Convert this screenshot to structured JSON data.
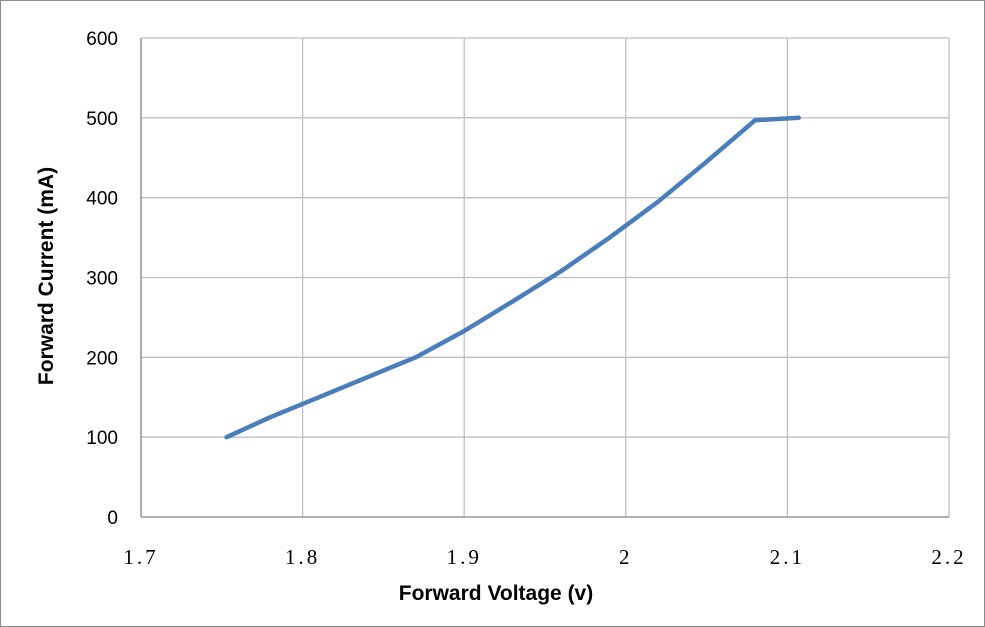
{
  "chart_data": {
    "type": "line",
    "title": "",
    "xlabel": "Forward Voltage (v)",
    "ylabel": "Forward Current  (mA)",
    "xlim": [
      1.7,
      2.2
    ],
    "ylim": [
      0,
      600
    ],
    "x_ticks": [
      "1.7",
      "1.8",
      "1.9",
      "2",
      "2.1",
      "2.2"
    ],
    "y_ticks": [
      "0",
      "100",
      "200",
      "300",
      "400",
      "500",
      "600"
    ],
    "grid": true,
    "legend": "none",
    "series": [
      {
        "color": "#4a7ebb",
        "x": [
          1.753,
          1.78,
          1.81,
          1.84,
          1.87,
          1.9,
          1.93,
          1.96,
          1.99,
          2.02,
          2.05,
          2.08,
          2.107
        ],
        "y": [
          100,
          125,
          150,
          175,
          200,
          233,
          270,
          308,
          350,
          395,
          445,
          497,
          500
        ]
      }
    ],
    "colors": {
      "line": "#4a7ebb",
      "grid": "#bfbfbf",
      "axis": "#8c8c8c"
    }
  }
}
